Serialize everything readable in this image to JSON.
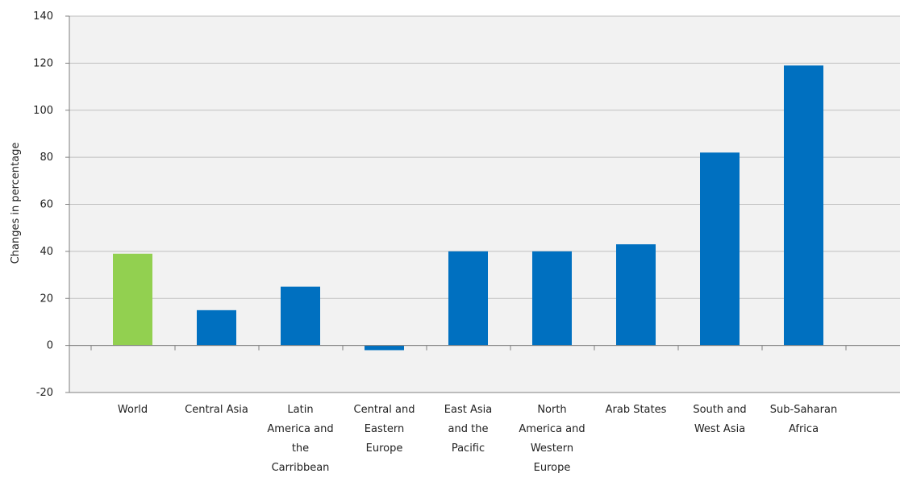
{
  "chart_data": {
    "type": "bar",
    "title": "",
    "xlabel": "",
    "ylabel": "Changes in percentage",
    "ylim": [
      -20,
      140
    ],
    "yticks": [
      -20,
      0,
      20,
      40,
      60,
      80,
      100,
      120,
      140
    ],
    "grid": true,
    "legend": "none",
    "categories": [
      [
        "World"
      ],
      [
        "Central Asia"
      ],
      [
        "Latin",
        "America and",
        "the",
        "Carribbean"
      ],
      [
        "Central and",
        "Eastern",
        "Europe"
      ],
      [
        "East Asia",
        "and the",
        "Pacific"
      ],
      [
        "North",
        "America and",
        "Western",
        "Europe"
      ],
      [
        "Arab States"
      ],
      [
        "South and",
        "West Asia"
      ],
      [
        "Sub-Saharan",
        "Africa"
      ]
    ],
    "values": [
      39,
      15,
      25,
      -2,
      40,
      40,
      43,
      82,
      119
    ],
    "colors": {
      "highlight": "#92d050",
      "bar": "#0070c0",
      "plot_background": "#f2f2f2",
      "gridline": "#bfbfbf",
      "axis": "#808080"
    },
    "highlight_index": 0
  }
}
